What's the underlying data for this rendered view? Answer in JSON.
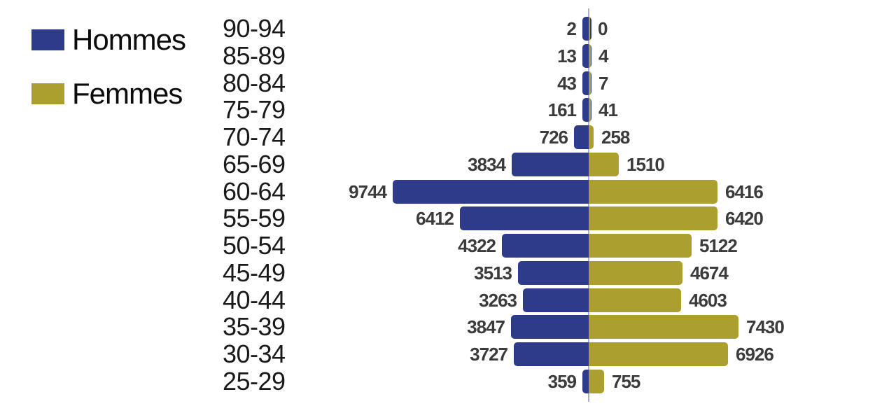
{
  "chart_data": {
    "type": "bar",
    "subtype": "population_pyramid",
    "orientation": "horizontal",
    "title": "",
    "categories": [
      "90-94",
      "85-89",
      "80-84",
      "75-79",
      "70-74",
      "65-69",
      "60-64",
      "55-59",
      "50-54",
      "45-49",
      "40-44",
      "35-39",
      "30-34",
      "25-29"
    ],
    "series": [
      {
        "name": "Hommes",
        "side": "left",
        "color": "#2e3b8a",
        "values": [
          2,
          13,
          43,
          161,
          726,
          3834,
          9744,
          6412,
          4322,
          3513,
          3263,
          3847,
          3727,
          359
        ]
      },
      {
        "name": "Femmes",
        "side": "right",
        "color": "#ab9f2e",
        "values": [
          0,
          4,
          7,
          41,
          258,
          1510,
          6416,
          6420,
          5122,
          4674,
          4603,
          7430,
          6926,
          755
        ]
      }
    ],
    "xmax": 9744,
    "value_labels_shown": true,
    "grid": false,
    "legend_position": "top-left",
    "axis_line_color": "#a9b2c9",
    "value_label_color": "#3b3b3b",
    "age_label_color": "#1a1a1a"
  }
}
